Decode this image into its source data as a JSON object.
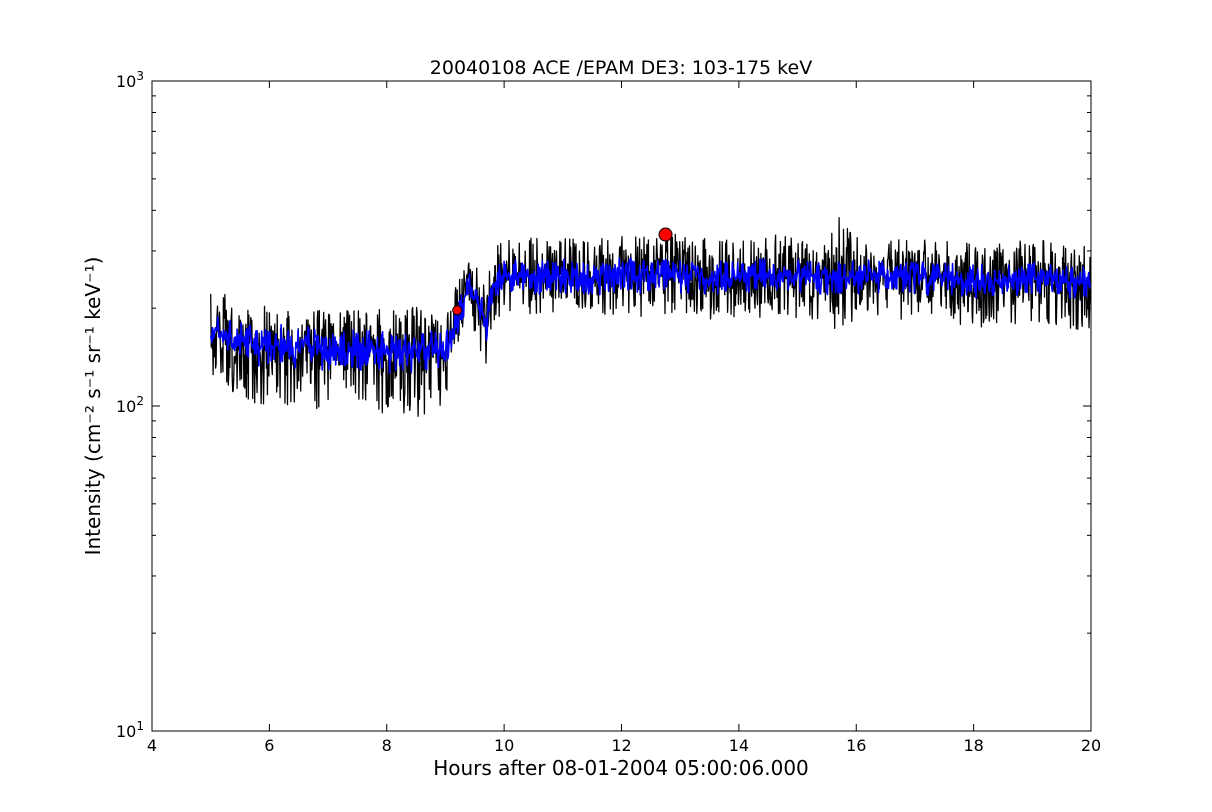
{
  "chart_data": {
    "type": "line",
    "title": "20040108 ACE /EPAM DE3: 103-175 keV",
    "xlabel": "Hours after 08-01-2004 05:00:06.000",
    "ylabel": "Intensity (cm⁻² s⁻¹ sr⁻¹ keV⁻¹)",
    "xlim": [
      4,
      20
    ],
    "ylim": [
      10,
      1000
    ],
    "yscale": "log",
    "grid": false,
    "x_ticks": [
      4,
      6,
      8,
      10,
      12,
      14,
      16,
      18,
      20
    ],
    "y_ticks": [
      {
        "value": 10,
        "base": "10",
        "exp": "1"
      },
      {
        "value": 100,
        "base": "10",
        "exp": "2"
      },
      {
        "value": 1000,
        "base": "10",
        "exp": "3"
      }
    ],
    "series": [
      {
        "color": "#000000",
        "style": "raw",
        "x": [
          5.0,
          5.1,
          5.2,
          5.3,
          5.4,
          5.5,
          5.6,
          5.7,
          5.8,
          5.9,
          6.0,
          6.2,
          6.4,
          6.6,
          6.8,
          7.0,
          7.2,
          7.4,
          7.6,
          7.8,
          8.0,
          8.2,
          8.4,
          8.6,
          8.8,
          9.0,
          9.2,
          9.4,
          9.6,
          9.7,
          9.8,
          10.0,
          10.5,
          11.0,
          11.5,
          12.0,
          12.5,
          12.8,
          13.0,
          13.5,
          14.0,
          14.5,
          15.0,
          15.5,
          15.7,
          16.0,
          16.5,
          17.0,
          17.5,
          18.0,
          18.5,
          19.0,
          19.5,
          20.0
        ],
        "y": [
          160,
          180,
          150,
          175,
          140,
          165,
          150,
          160,
          145,
          155,
          150,
          155,
          140,
          160,
          150,
          145,
          155,
          150,
          145,
          150,
          140,
          145,
          140,
          150,
          145,
          140,
          175,
          240,
          200,
          160,
          230,
          260,
          250,
          255,
          245,
          260,
          250,
          270,
          255,
          250,
          245,
          260,
          255,
          250,
          245,
          250,
          255,
          245,
          250,
          240,
          245,
          250,
          240,
          235
        ],
        "band_low": [
          120,
          120,
          110,
          110,
          110,
          110,
          100,
          100,
          100,
          100,
          100,
          100,
          95,
          95,
          95,
          95,
          100,
          100,
          95,
          95,
          95,
          95,
          90,
          90,
          95,
          100,
          140,
          180,
          130,
          115,
          180,
          190,
          190,
          190,
          190,
          190,
          185,
          190,
          190,
          185,
          180,
          190,
          185,
          185,
          150,
          180,
          185,
          180,
          180,
          175,
          175,
          180,
          170,
          170
        ],
        "band_high": [
          230,
          240,
          225,
          220,
          215,
          210,
          210,
          205,
          205,
          205,
          200,
          200,
          200,
          200,
          200,
          195,
          200,
          200,
          200,
          200,
          200,
          200,
          200,
          205,
          210,
          210,
          240,
          280,
          260,
          230,
          300,
          330,
          330,
          330,
          325,
          335,
          330,
          350,
          330,
          330,
          330,
          345,
          340,
          340,
          400,
          330,
          330,
          325,
          330,
          320,
          320,
          325,
          320,
          320
        ]
      },
      {
        "color": "#0000ff",
        "style": "smoothed",
        "x": [
          5.0,
          5.1,
          5.2,
          5.3,
          5.4,
          5.5,
          5.6,
          5.7,
          5.8,
          5.9,
          6.0,
          6.2,
          6.4,
          6.6,
          6.8,
          7.0,
          7.2,
          7.4,
          7.6,
          7.8,
          8.0,
          8.2,
          8.4,
          8.6,
          8.8,
          9.0,
          9.2,
          9.4,
          9.6,
          9.7,
          9.8,
          10.0,
          10.5,
          11.0,
          11.5,
          12.0,
          12.5,
          12.8,
          13.0,
          13.5,
          14.0,
          14.5,
          15.0,
          15.5,
          15.7,
          16.0,
          16.5,
          17.0,
          17.5,
          18.0,
          18.5,
          19.0,
          19.5,
          20.0
        ],
        "y": [
          160,
          175,
          155,
          170,
          150,
          160,
          155,
          158,
          150,
          155,
          152,
          155,
          148,
          158,
          150,
          148,
          152,
          150,
          148,
          150,
          145,
          148,
          145,
          150,
          148,
          145,
          180,
          235,
          205,
          175,
          235,
          255,
          248,
          252,
          246,
          256,
          250,
          262,
          252,
          248,
          246,
          258,
          253,
          249,
          247,
          250,
          252,
          246,
          249,
          242,
          245,
          248,
          242,
          238
        ],
        "band_low": [
          145,
          150,
          140,
          145,
          135,
          140,
          135,
          138,
          132,
          135,
          132,
          135,
          128,
          135,
          130,
          128,
          132,
          130,
          128,
          130,
          125,
          128,
          125,
          130,
          128,
          125,
          160,
          205,
          180,
          150,
          210,
          225,
          220,
          222,
          218,
          226,
          220,
          230,
          222,
          220,
          218,
          228,
          224,
          220,
          218,
          221,
          223,
          218,
          220,
          214,
          216,
          218,
          213,
          210
        ],
        "band_high": [
          185,
          195,
          180,
          190,
          175,
          182,
          178,
          180,
          172,
          178,
          175,
          178,
          170,
          180,
          172,
          170,
          175,
          172,
          170,
          172,
          168,
          170,
          168,
          172,
          170,
          168,
          205,
          265,
          235,
          200,
          265,
          285,
          280,
          284,
          276,
          288,
          282,
          295,
          284,
          280,
          278,
          290,
          285,
          280,
          278,
          282,
          284,
          276,
          280,
          272,
          275,
          278,
          272,
          268
        ]
      }
    ],
    "markers": [
      {
        "x": 9.2,
        "y": 197,
        "color": "#ff0000",
        "shape": "circle",
        "size": "small"
      },
      {
        "x": 12.75,
        "y": 337,
        "color": "#ff0000",
        "shape": "circle",
        "size": "large"
      }
    ]
  }
}
